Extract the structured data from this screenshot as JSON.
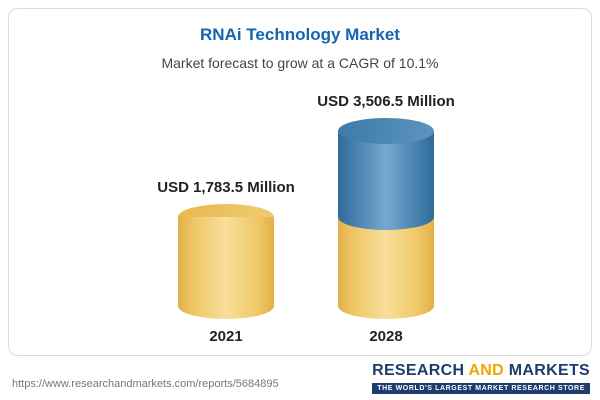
{
  "chart": {
    "title": "RNAi Technology Market",
    "subtitle": "Market forecast to grow at a CAGR of 10.1%",
    "bars": [
      {
        "category": "2021",
        "value_label": "USD 1,783.5 Million"
      },
      {
        "category": "2028",
        "value_label": "USD 3,506.5 Million"
      }
    ]
  },
  "chart_data": {
    "type": "bar",
    "categories": [
      "2021",
      "2028"
    ],
    "values": [
      1783.5,
      3506.5
    ],
    "title": "RNAi Technology Market",
    "subtitle": "Market forecast to grow at a CAGR of 10.1%",
    "unit": "USD Million",
    "xlabel": "",
    "ylabel": "",
    "ylim": [
      0,
      3800
    ],
    "legend": "none",
    "grid": false,
    "annotations": [
      "USD 1,783.5 Million",
      "USD 3,506.5 Million"
    ],
    "colors": {
      "bar_2021": "#f0c75e",
      "bar_2028_bottom_segment": "#f0c75e",
      "bar_2028_top_segment": "#4884b3",
      "title": "#1565ae",
      "subtitle": "#454545"
    },
    "notes": "3D cylinder bars; 2028 bar is stacked: yellow base equal to 2021 height plus blue growth segment on top"
  },
  "footer": {
    "url": "https://www.researchandmarkets.com/reports/5684895",
    "logo": {
      "part1": "RESEARCH ",
      "part2": "AND",
      "part3": " MARKETS",
      "tagline": "THE WORLD'S LARGEST MARKET RESEARCH STORE"
    }
  }
}
